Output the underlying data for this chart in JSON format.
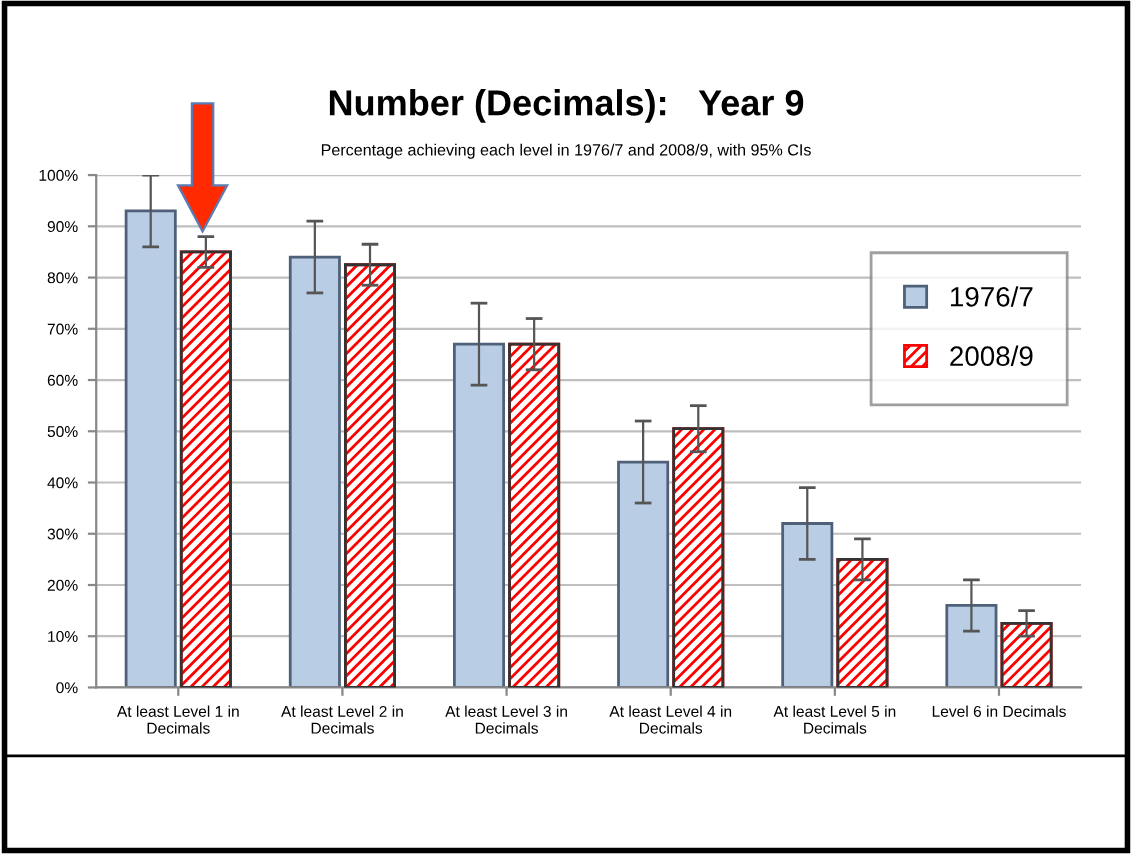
{
  "chart_data": {
    "type": "bar",
    "title": "Number (Decimals):   Year 9",
    "subtitle": "Percentage achieving each level in 1976/7 and 2008/9, with 95% CIs",
    "categories": [
      "At least Level 1 in\nDecimals",
      "At least Level 2 in\nDecimals",
      "At least Level 3 in\nDecimals",
      "At least Level 4 in\nDecimals",
      "At least Level 5 in\nDecimals",
      "Level 6 in Decimals"
    ],
    "series": [
      {
        "name": "1976/7",
        "color": "#b9cde5",
        "values": [
          93,
          84,
          67,
          44,
          32,
          16
        ],
        "errors": [
          7,
          7,
          8,
          8,
          7,
          5
        ]
      },
      {
        "name": "2008/9",
        "color": "#ff0000",
        "values": [
          85,
          82.5,
          67,
          50.5,
          25,
          12.5
        ],
        "errors": [
          3,
          4,
          5,
          4.5,
          4,
          2.5
        ]
      }
    ],
    "ylim": [
      0,
      100
    ],
    "yticks": [
      {
        "value": 0,
        "label": "0%"
      },
      {
        "value": 10,
        "label": "10%"
      },
      {
        "value": 20,
        "label": "20%"
      },
      {
        "value": 30,
        "label": "30%"
      },
      {
        "value": 40,
        "label": "40%"
      },
      {
        "value": 50,
        "label": "50%"
      },
      {
        "value": 60,
        "label": "60%"
      },
      {
        "value": 70,
        "label": "70%"
      },
      {
        "value": 80,
        "label": "80%"
      },
      {
        "value": 90,
        "label": "90%"
      },
      {
        "value": 100,
        "label": "100%"
      }
    ],
    "grid": "y",
    "legend": "right"
  }
}
